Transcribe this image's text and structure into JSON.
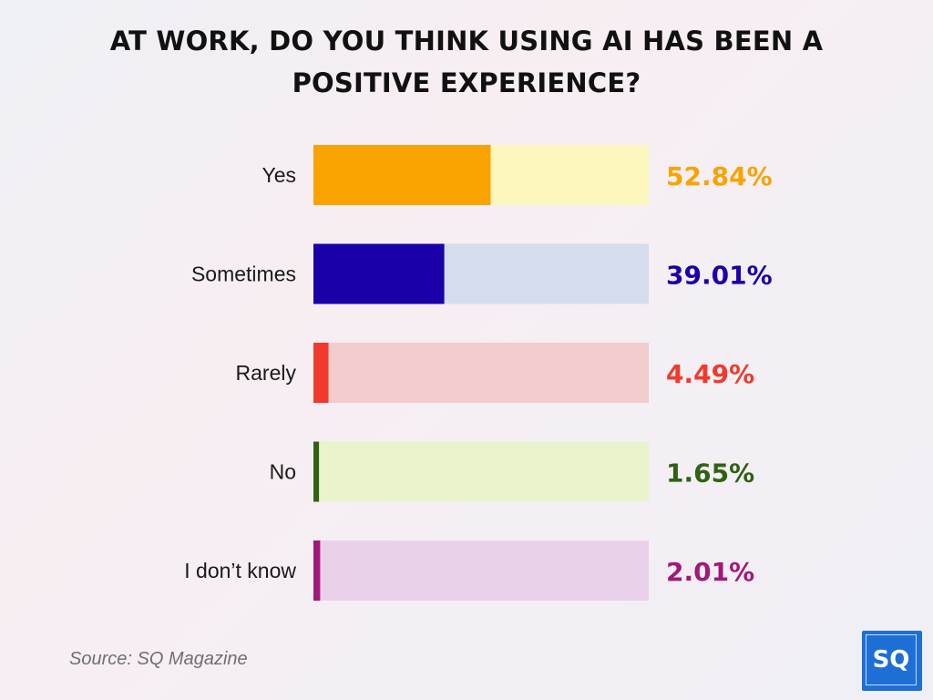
{
  "chart_data": {
    "type": "bar",
    "orientation": "horizontal",
    "title_lines": [
      "AT WORK, DO YOU THINK USING AI HAS BEEN A",
      "POSITIVE EXPERIENCE?"
    ],
    "categories": [
      "Yes",
      "Sometimes",
      "Rarely",
      "No",
      "I don’t know"
    ],
    "values": [
      52.84,
      39.01,
      4.49,
      1.65,
      2.01
    ],
    "value_labels": [
      "52.84%",
      "39.01%",
      "4.49%",
      "1.65%",
      "2.01%"
    ],
    "xlim": [
      0,
      100
    ],
    "grid": false,
    "legend": "none",
    "colors": [
      "#f9a300",
      "#1a00a8",
      "#ef3a2c",
      "#2f6212",
      "#a0197a"
    ],
    "track_colors": [
      "#fdf6bd",
      "#d5dcec",
      "#f2cbcc",
      "#e9f4cd",
      "#e9d1e9"
    ]
  },
  "source": "Source: SQ Magazine",
  "logo": {
    "text": "SQ",
    "color": "#1d6fd6"
  }
}
